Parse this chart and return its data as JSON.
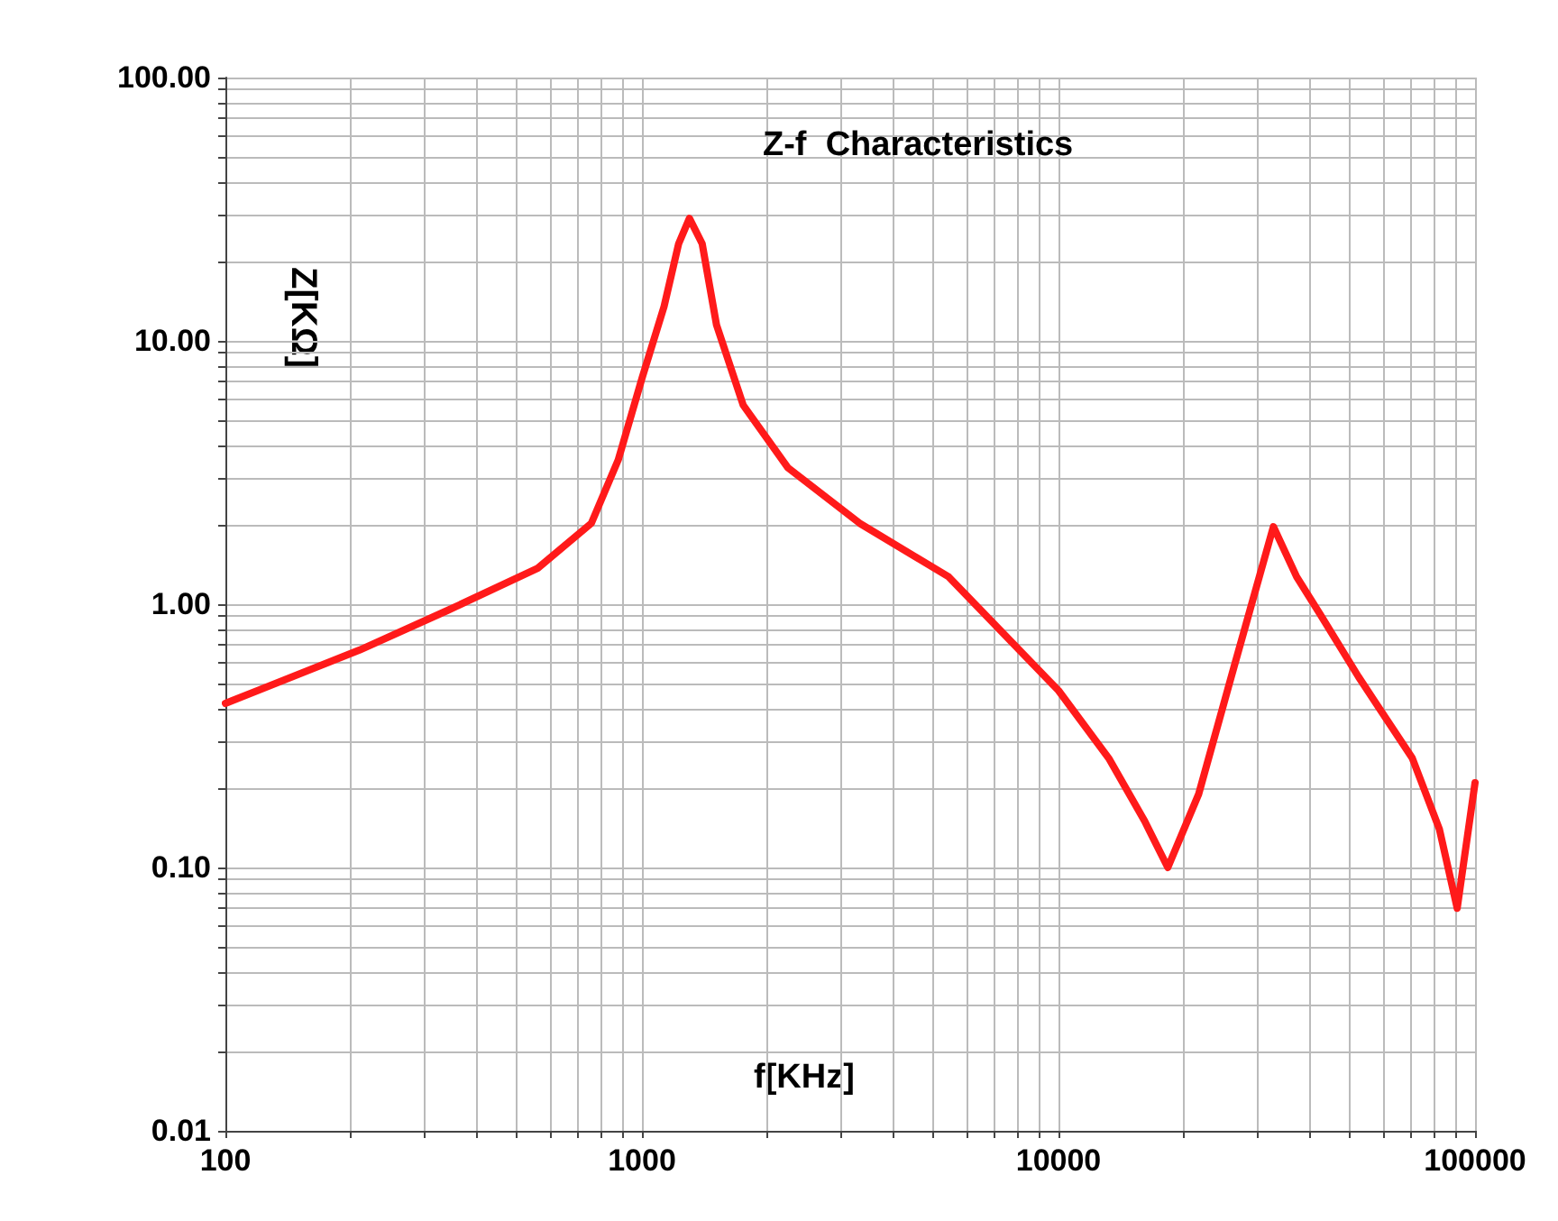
{
  "chart_data": {
    "type": "line",
    "title": "Z-f  Characteristics",
    "xlabel": "f[KHz]",
    "ylabel": "Z[KΩ]",
    "log": "xy",
    "grid": true,
    "marker": "none",
    "line_style": "solid",
    "x": [
      100,
      210,
      343,
      562,
      756,
      877,
      1000,
      1130,
      1225,
      1300,
      1395,
      1510,
      1750,
      2240,
      3330,
      5450,
      10000,
      13200,
      16100,
      18300,
      21700,
      26400,
      32800,
      37300,
      42400,
      52500,
      70700,
      82100,
      90600,
      100000
    ],
    "series": [
      {
        "color": "#ff1a1a",
        "values": [
          0.42,
          0.67,
          0.95,
          1.37,
          2.03,
          3.53,
          7.2,
          13.5,
          23.4,
          29.2,
          23.4,
          11.5,
          5.7,
          3.3,
          2.03,
          1.27,
          0.47,
          0.26,
          0.15,
          0.1,
          0.19,
          0.58,
          1.97,
          1.27,
          0.92,
          0.53,
          0.26,
          0.14,
          0.07,
          0.21
        ]
      }
    ],
    "xlim": [
      100,
      100000
    ],
    "xticks": [
      100,
      {
        "value": 200,
        "label": null
      },
      {
        "value": 300,
        "label": null
      },
      {
        "value": 400,
        "label": null
      },
      {
        "value": 500,
        "label": null
      },
      {
        "value": 600,
        "label": null
      },
      {
        "value": 700,
        "label": null
      },
      {
        "value": 800,
        "label": null
      },
      {
        "value": 900,
        "label": null
      },
      1000,
      {
        "value": 2000,
        "label": null
      },
      {
        "value": 3000,
        "label": null
      },
      {
        "value": 4000,
        "label": null
      },
      {
        "value": 5000,
        "label": null
      },
      {
        "value": 6000,
        "label": null
      },
      {
        "value": 7000,
        "label": null
      },
      {
        "value": 8000,
        "label": null
      },
      {
        "value": 9000,
        "label": null
      },
      10000,
      {
        "value": 20000,
        "label": null
      },
      {
        "value": 30000,
        "label": null
      },
      {
        "value": 40000,
        "label": null
      },
      {
        "value": 50000,
        "label": null
      },
      {
        "value": 60000,
        "label": null
      },
      {
        "value": 70000,
        "label": null
      },
      {
        "value": 80000,
        "label": null
      },
      {
        "value": 90000,
        "label": null
      },
      100000
    ],
    "ylim": [
      0.01,
      100
    ],
    "yticks": [
      {
        "value": 0.01,
        "label": "0.01"
      },
      {
        "value": 0.02,
        "label": null
      },
      {
        "value": 0.03,
        "label": null
      },
      {
        "value": 0.04,
        "label": null
      },
      {
        "value": 0.05,
        "label": null
      },
      {
        "value": 0.06,
        "label": null
      },
      {
        "value": 0.07,
        "label": null
      },
      {
        "value": 0.08,
        "label": null
      },
      {
        "value": 0.09,
        "label": null
      },
      {
        "value": 0.1,
        "label": "0.10"
      },
      {
        "value": 0.2,
        "label": null
      },
      {
        "value": 0.3,
        "label": null
      },
      {
        "value": 0.4,
        "label": null
      },
      {
        "value": 0.5,
        "label": null
      },
      {
        "value": 0.6,
        "label": null
      },
      {
        "value": 0.7,
        "label": null
      },
      {
        "value": 0.8,
        "label": null
      },
      {
        "value": 0.9,
        "label": null
      },
      {
        "value": 1,
        "label": "1.00"
      },
      {
        "value": 2,
        "label": null
      },
      {
        "value": 3,
        "label": null
      },
      {
        "value": 4,
        "label": null
      },
      {
        "value": 5,
        "label": null
      },
      {
        "value": 6,
        "label": null
      },
      {
        "value": 7,
        "label": null
      },
      {
        "value": 8,
        "label": null
      },
      {
        "value": 9,
        "label": null
      },
      {
        "value": 10,
        "label": "10.00"
      },
      {
        "value": 20,
        "label": null
      },
      {
        "value": 30,
        "label": null
      },
      {
        "value": 40,
        "label": null
      },
      {
        "value": 50,
        "label": null
      },
      {
        "value": 60,
        "label": null
      },
      {
        "value": 70,
        "label": null
      },
      {
        "value": 80,
        "label": null
      },
      {
        "value": 90,
        "label": null
      },
      {
        "value": 100,
        "label": "100.00"
      }
    ]
  }
}
